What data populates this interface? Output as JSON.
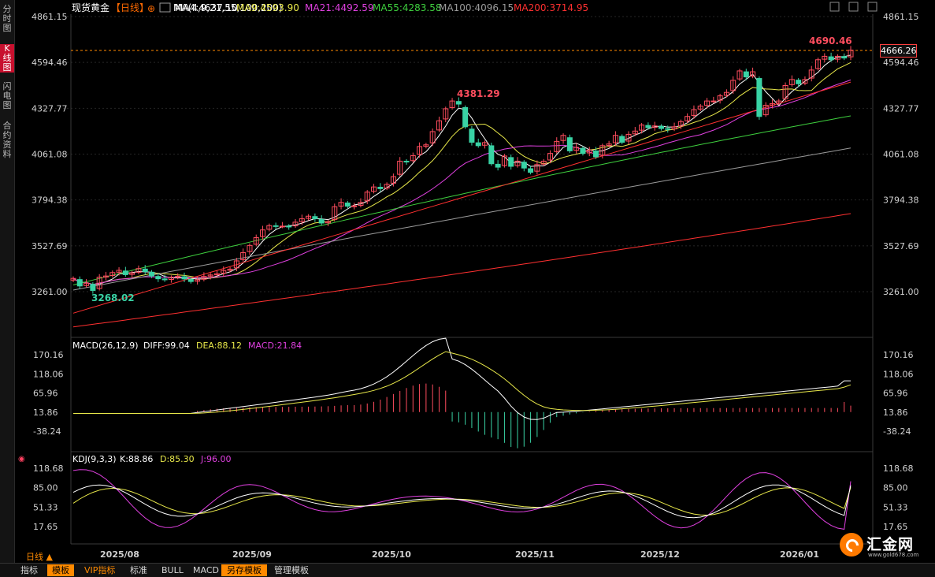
{
  "side_tabs": [
    {
      "label": "分时图",
      "active": false
    },
    {
      "label": "K线图",
      "active": true
    },
    {
      "label": "闪电图",
      "active": false
    },
    {
      "label": "合约资料",
      "active": false
    }
  ],
  "header": {
    "symbol": "现货黄金",
    "period": "【日线】",
    "ma_params": "MA(4,9,21,55,100,200)",
    "ma": [
      {
        "label": "MA4:4637.10",
        "color": "#ffffff"
      },
      {
        "label": "MA9:4593.90",
        "color": "#e8e84a"
      },
      {
        "label": "MA21:4492.59",
        "color": "#e040e0"
      },
      {
        "label": "MA55:4283.58",
        "color": "#3ecf3e"
      },
      {
        "label": "MA100:4096.15",
        "color": "#9a9a9a"
      },
      {
        "label": "MA200:3714.95",
        "color": "#ff3030"
      }
    ]
  },
  "current_price_label": "4666.26",
  "period_label": "日线 ▲",
  "bottom_tabs": [
    "指标",
    "模板",
    "VIP指标",
    "标准",
    "BULL",
    "MACD",
    "另存模板",
    "管理模板"
  ],
  "logo": {
    "name": "汇金网",
    "url": "www.gold678.com"
  },
  "chart_data": {
    "type": "candlestick",
    "price_axis": {
      "ticks": [
        "4861.15",
        "4594.46",
        "4327.77",
        "4061.08",
        "3794.38",
        "3527.69",
        "3261.00"
      ],
      "ylim": [
        3261.0,
        4861.15
      ]
    },
    "x_ticks": [
      "2025/08",
      "2025/09",
      "2025/10",
      "2025/11",
      "2025/12",
      "2026/01"
    ],
    "annotations": [
      "4690.46",
      "4381.29",
      "3268.02"
    ],
    "closes": [
      3338,
      3294,
      3310,
      3268,
      3345,
      3352,
      3372,
      3385,
      3360,
      3370,
      3395,
      3378,
      3352,
      3336,
      3330,
      3344,
      3350,
      3335,
      3320,
      3330,
      3350,
      3358,
      3365,
      3384,
      3392,
      3440,
      3488,
      3530,
      3575,
      3620,
      3645,
      3642,
      3642,
      3640,
      3665,
      3685,
      3700,
      3685,
      3660,
      3668,
      3755,
      3780,
      3758,
      3760,
      3780,
      3840,
      3870,
      3860,
      3885,
      3930,
      4020,
      4018,
      4052,
      4105,
      4115,
      4192,
      4255,
      4325,
      4370,
      4352,
      4220,
      4130,
      4110,
      4128,
      4005,
      3985,
      4050,
      3990,
      4020,
      3980,
      3955,
      4000,
      4020,
      4065,
      4135,
      4170,
      4080,
      4100,
      4065,
      4085,
      4045,
      4110,
      4120,
      4170,
      4130,
      4176,
      4195,
      4230,
      4215,
      4225,
      4210,
      4205,
      4220,
      4250,
      4280,
      4320,
      4340,
      4370,
      4370,
      4400,
      4420,
      4490,
      4545,
      4510,
      4540,
      4280,
      4345,
      4355,
      4370,
      4460,
      4495,
      4470,
      4495,
      4550,
      4610,
      4630,
      4610,
      4630,
      4620,
      4666
    ],
    "ma_last": {
      "MA4": 4637.1,
      "MA9": 4593.9,
      "MA21": 4492.59,
      "MA55": 4283.58,
      "MA100": 4096.15,
      "MA200": 3714.95
    },
    "macd": {
      "label": "MACD(26,12,9)",
      "diff_label": "DIFF:99.04",
      "dea_label": "DEA:88.12",
      "macd_label": "MACD:21.84",
      "diff": 99.04,
      "dea": 88.12,
      "macd": 21.84,
      "ticks": [
        "170.16",
        "118.06",
        "65.96",
        "13.86",
        "-38.24"
      ],
      "ylim": [
        -38.24,
        170.16
      ]
    },
    "kdj": {
      "label": "KDJ(9,3,3)",
      "k_label": "K:88.86",
      "d_label": "D:85.30",
      "j_label": "J:96.00",
      "k": 88.86,
      "d": 85.3,
      "j": 96.0,
      "ticks": [
        "118.68",
        "85.00",
        "51.33",
        "17.65"
      ],
      "ylim": [
        17.65,
        118.68
      ]
    }
  }
}
